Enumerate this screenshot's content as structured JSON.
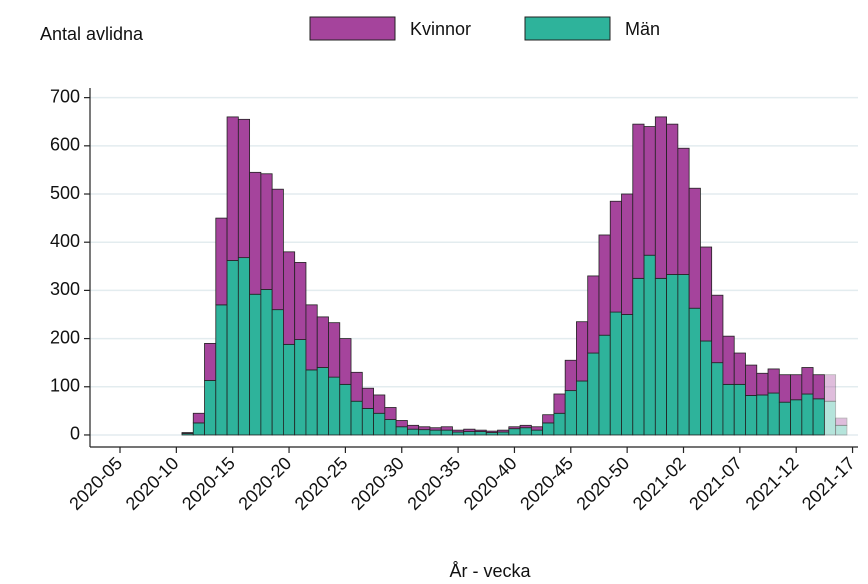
{
  "chart_data": {
    "type": "stacked_bar",
    "y_label": "Antal avlidna",
    "x_label": "År - vecka",
    "categories": [
      "2020-05",
      null,
      null,
      null,
      null,
      "2020-10",
      null,
      null,
      null,
      null,
      "2020-15",
      null,
      null,
      null,
      null,
      "2020-20",
      null,
      null,
      null,
      null,
      "2020-25",
      null,
      null,
      null,
      null,
      "2020-30",
      null,
      null,
      null,
      null,
      "2020-35",
      null,
      null,
      null,
      null,
      "2020-40",
      null,
      null,
      null,
      null,
      "2020-45",
      null,
      null,
      null,
      null,
      "2020-50",
      null,
      null,
      null,
      null,
      "2021-02",
      null,
      null,
      null,
      null,
      "2021-07",
      null,
      null,
      null,
      null,
      "2021-12",
      null,
      null,
      null,
      null,
      "2021-17"
    ],
    "series": [
      {
        "name": "Män",
        "color": "#2eb39b",
        "values": [
          null,
          null,
          null,
          null,
          null,
          null,
          3,
          25,
          113,
          270,
          362,
          368,
          292,
          302,
          260,
          188,
          198,
          135,
          140,
          120,
          105,
          70,
          55,
          45,
          32,
          17,
          12,
          11,
          10,
          10,
          6,
          7,
          7,
          5,
          6,
          13,
          15,
          10,
          25,
          45,
          92,
          112,
          170,
          207,
          255,
          250,
          325,
          373,
          325,
          333,
          333,
          263,
          195,
          150,
          105,
          105,
          82,
          83,
          87,
          68,
          73,
          85,
          75,
          70,
          20,
          null
        ]
      },
      {
        "name": "Kvinnor",
        "color": "#a5449c",
        "values": [
          null,
          null,
          null,
          null,
          null,
          null,
          2,
          20,
          77,
          180,
          298,
          287,
          253,
          240,
          250,
          192,
          160,
          135,
          105,
          113,
          95,
          60,
          42,
          38,
          25,
          13,
          8,
          6,
          5,
          7,
          4,
          5,
          3,
          3,
          4,
          4,
          5,
          7,
          17,
          40,
          63,
          123,
          160,
          208,
          230,
          250,
          320,
          267,
          335,
          312,
          262,
          249,
          195,
          140,
          100,
          65,
          63,
          45,
          50,
          57,
          52,
          55,
          50,
          55,
          15,
          null
        ]
      }
    ],
    "legend_order": [
      "Kvinnor",
      "Män"
    ],
    "ylim": [
      -25,
      720
    ],
    "yticks": [
      0,
      100,
      200,
      300,
      400,
      500,
      600,
      700
    ],
    "grid": true
  }
}
